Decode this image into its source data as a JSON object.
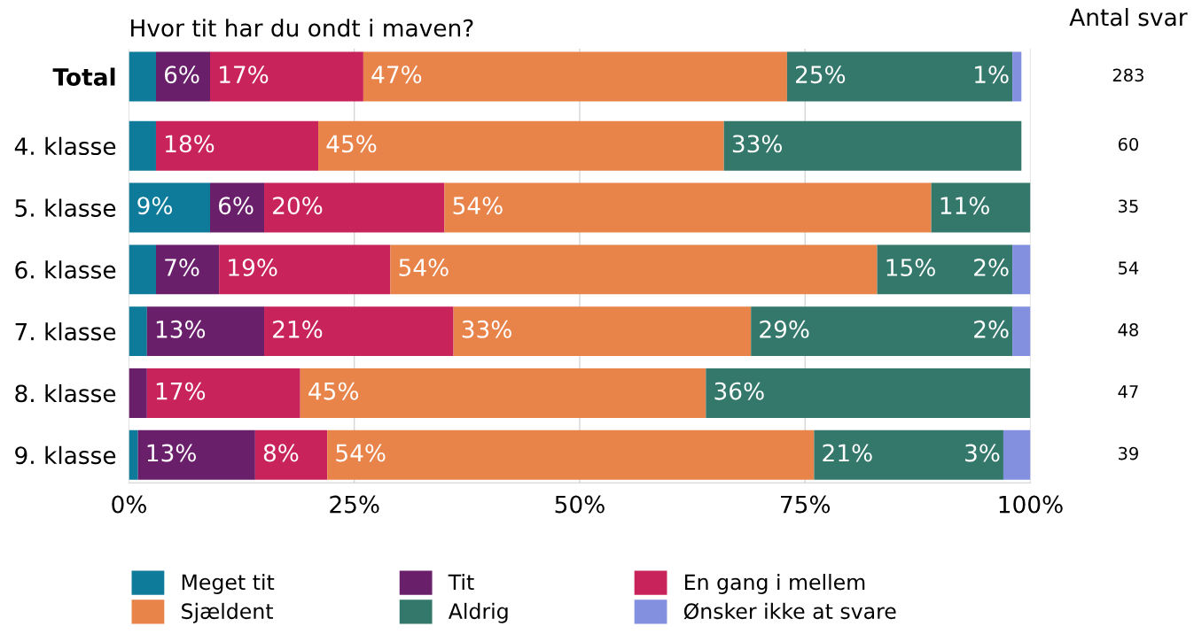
{
  "chart_data": {
    "type": "bar",
    "orientation": "horizontal",
    "stacked": true,
    "title": "Hvor tit har du ondt i maven?",
    "categories": [
      "Total",
      "4. klasse",
      "5. klasse",
      "6. klasse",
      "7. klasse",
      "8. klasse",
      "9. klasse"
    ],
    "series": [
      {
        "name": "Meget tit",
        "color": "#0f7b9a",
        "values": [
          3,
          3,
          9,
          3,
          2,
          0,
          1
        ],
        "value_labels": [
          null,
          null,
          "9%",
          null,
          null,
          null,
          null
        ]
      },
      {
        "name": "Tit",
        "color": "#6a1f6b",
        "values": [
          6,
          0,
          6,
          7,
          13,
          2,
          13
        ],
        "value_labels": [
          "6%",
          null,
          "6%",
          "7%",
          "13%",
          null,
          "13%"
        ]
      },
      {
        "name": "En gang i mellem",
        "color": "#c8235a",
        "values": [
          17,
          18,
          20,
          19,
          21,
          17,
          8
        ],
        "value_labels": [
          "17%",
          "18%",
          "20%",
          "19%",
          "21%",
          "17%",
          "8%"
        ]
      },
      {
        "name": "Sjældent",
        "color": "#e8834a",
        "values": [
          47,
          45,
          54,
          54,
          33,
          45,
          54
        ],
        "value_labels": [
          "47%",
          "45%",
          "54%",
          "54%",
          "33%",
          "45%",
          "54%"
        ]
      },
      {
        "name": "Aldrig",
        "color": "#33786b",
        "values": [
          25,
          33,
          11,
          15,
          29,
          36,
          21
        ],
        "value_labels": [
          "25%",
          "33%",
          "11%",
          "15%",
          "29%",
          "36%",
          "21%"
        ]
      },
      {
        "name": "Ønsker ikke at svare",
        "color": "#8390e0",
        "values": [
          1,
          0,
          0,
          2,
          2,
          0,
          3
        ],
        "value_labels": [
          "1%",
          null,
          null,
          "2%",
          "2%",
          null,
          "3%"
        ]
      }
    ],
    "xlim": [
      0,
      100
    ],
    "xticks": [
      {
        "value": 0,
        "label": "0%"
      },
      {
        "value": 25,
        "label": "25%"
      },
      {
        "value": 50,
        "label": "50%"
      },
      {
        "value": 75,
        "label": "75%"
      },
      {
        "value": 100,
        "label": "100%"
      }
    ],
    "grid": "x",
    "legend": "bottom",
    "annotations": [
      "Antal svar",
      "283",
      "60",
      "35",
      "54",
      "48",
      "47",
      "39"
    ]
  }
}
